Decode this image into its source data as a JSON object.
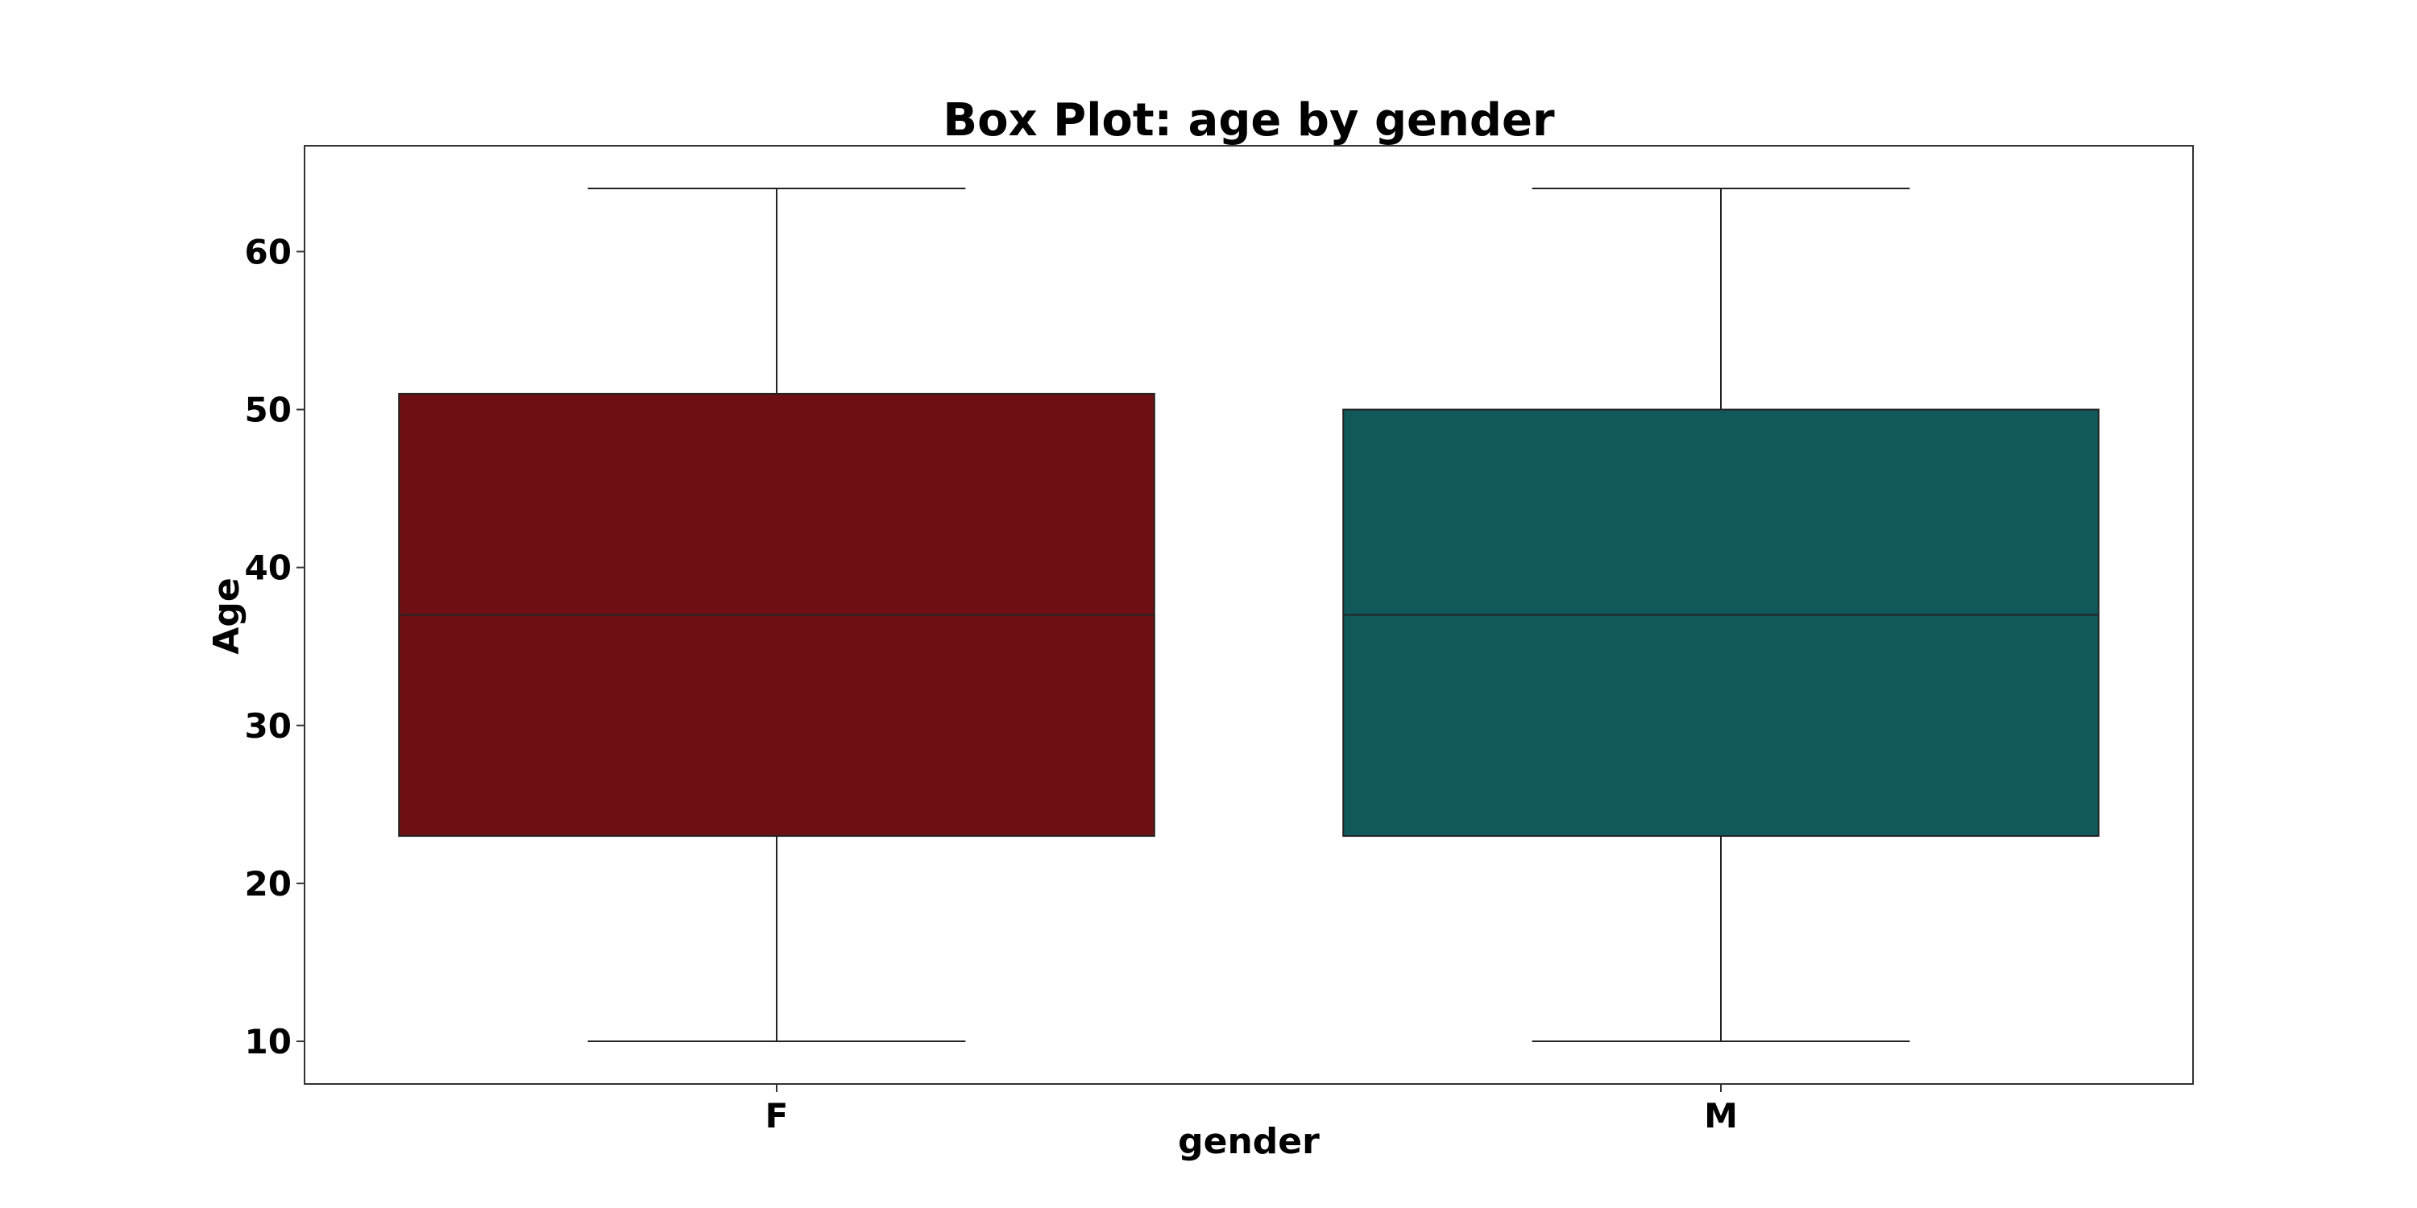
{
  "chart_data": {
    "type": "box",
    "title": "Box Plot: age by gender",
    "xlabel": "gender",
    "ylabel": "Age",
    "categories": [
      "F",
      "M"
    ],
    "boxes": [
      {
        "category": "F",
        "whisker_low": 10,
        "q1": 23,
        "median": 37,
        "q3": 51,
        "whisker_high": 64,
        "color": "#6e1013"
      },
      {
        "category": "M",
        "whisker_low": 10,
        "q1": 23,
        "median": 37,
        "q3": 50,
        "whisker_high": 64,
        "color": "#10585a"
      }
    ],
    "y_ticks": [
      10,
      20,
      30,
      40,
      50,
      60
    ],
    "ylim": [
      7.3,
      66.7
    ],
    "grid": false,
    "legend": "none"
  }
}
